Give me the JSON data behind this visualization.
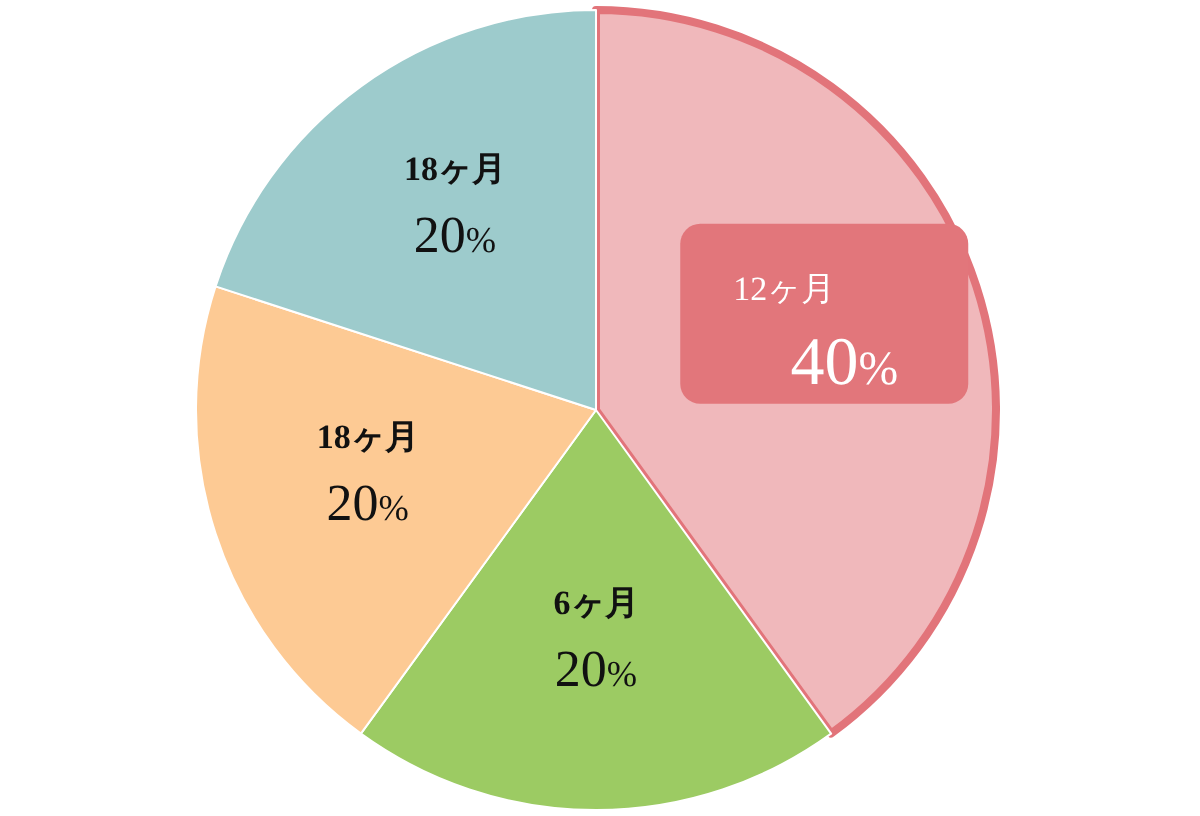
{
  "chart_data": {
    "type": "pie",
    "categories": [
      "12ヶ月",
      "6ヶ月",
      "18ヶ月",
      "18ヶ月"
    ],
    "values": [
      40,
      20,
      20,
      20
    ],
    "value_labels": [
      "40%",
      "20%",
      "20%",
      "20%"
    ],
    "colors": [
      "#f0b8bb",
      "#9ccb63",
      "#fdca94",
      "#9dcbcc"
    ]
  }
}
